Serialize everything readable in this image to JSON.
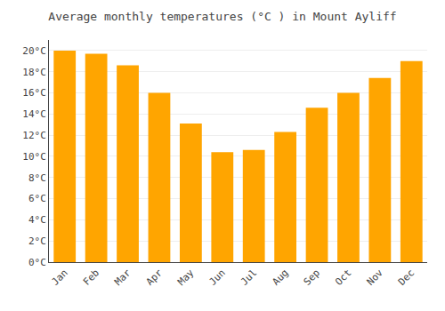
{
  "chart_data": {
    "type": "bar",
    "title": "Average monthly temperatures (°C ) in Mount Ayliff",
    "categories": [
      "Jan",
      "Feb",
      "Mar",
      "Apr",
      "May",
      "Jun",
      "Jul",
      "Aug",
      "Sep",
      "Oct",
      "Nov",
      "Dec"
    ],
    "values": [
      20.0,
      19.7,
      18.6,
      16.0,
      13.1,
      10.4,
      10.6,
      12.3,
      14.6,
      16.0,
      17.4,
      19.0
    ],
    "color": "#FFA500",
    "ylim": [
      0,
      21
    ],
    "yticks": [
      {
        "value": 0,
        "label": "0°C"
      },
      {
        "value": 2,
        "label": "2°C"
      },
      {
        "value": 4,
        "label": "4°C"
      },
      {
        "value": 6,
        "label": "6°C"
      },
      {
        "value": 8,
        "label": "8°C"
      },
      {
        "value": 10,
        "label": "10°C"
      },
      {
        "value": 12,
        "label": "12°C"
      },
      {
        "value": 14,
        "label": "14°C"
      },
      {
        "value": 16,
        "label": "16°C"
      },
      {
        "value": 18,
        "label": "18°C"
      },
      {
        "value": 20,
        "label": "20°C"
      }
    ],
    "grid": true
  }
}
